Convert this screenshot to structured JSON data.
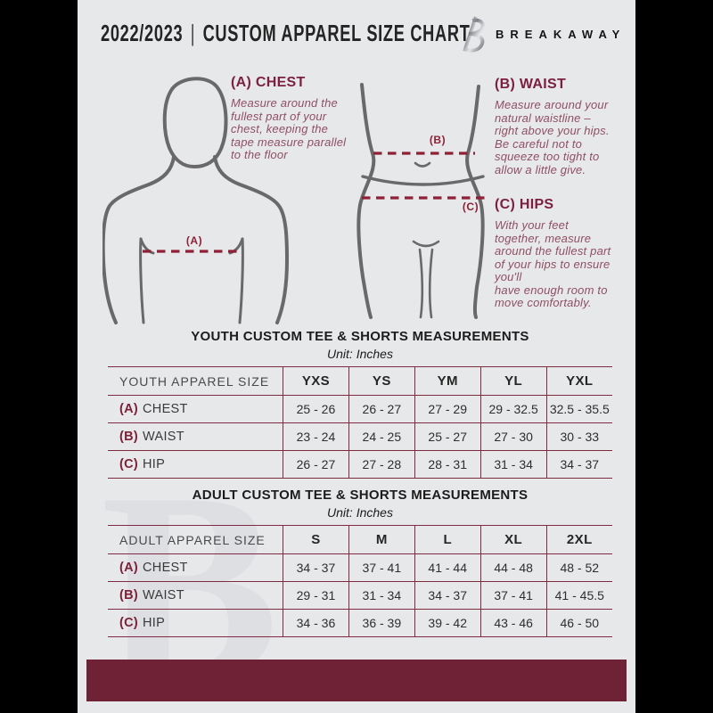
{
  "header": {
    "year": "2022/2023",
    "separator": "|",
    "title": "CUSTOM APPAREL SIZE CHART",
    "brand": "BREAKAWAY"
  },
  "diagram": {
    "chest_label": "(A)",
    "waist_label": "(B)",
    "hips_label": "(C)"
  },
  "sections": [
    {
      "heading": "(A) CHEST",
      "body": "Measure around the\nfullest part of your\nchest, keeping the\ntape measure parallel\nto the floor"
    },
    {
      "heading": "(B) WAIST",
      "body": "Measure around your\nnatural waistline –\nright above your hips.\nBe careful not to\nsqueeze too tight to\nallow a little give."
    },
    {
      "heading": "(C) HIPS",
      "body": "With your feet\ntogether, measure\naround the fullest part\nof your hips to ensure\nyou'll\nhave enough room to\nmove comfortably."
    }
  ],
  "watermark": {
    "letter": "B"
  },
  "tables": [
    {
      "title": "YOUTH CUSTOM TEE & SHORTS MEASUREMENTS",
      "unit": "Unit: Inches",
      "size_col_header": "YOUTH APPAREL SIZE",
      "sizes": [
        "YXS",
        "YS",
        "YM",
        "YL",
        "YXL"
      ],
      "rows": [
        {
          "prefix": "(A)",
          "label": "CHEST",
          "values": [
            "25 - 26",
            "26 - 27",
            "27 - 29",
            "29 - 32.5",
            "32.5 - 35.5"
          ]
        },
        {
          "prefix": "(B)",
          "label": "WAIST",
          "values": [
            "23 - 24",
            "24 - 25",
            "25 - 27",
            "27 - 30",
            "30 - 33"
          ]
        },
        {
          "prefix": "(C)",
          "label": "HIP",
          "values": [
            "26 - 27",
            "27 - 28",
            "28 - 31",
            "31 - 34",
            "34 - 37"
          ]
        }
      ]
    },
    {
      "title": "ADULT CUSTOM TEE & SHORTS MEASUREMENTS",
      "unit": "Unit: Inches",
      "size_col_header": "ADULT APPAREL SIZE",
      "sizes": [
        "S",
        "M",
        "L",
        "XL",
        "2XL"
      ],
      "rows": [
        {
          "prefix": "(A)",
          "label": "CHEST",
          "values": [
            "34 - 37",
            "37 - 41",
            "41 - 44",
            "44 - 48",
            "48 - 52"
          ]
        },
        {
          "prefix": "(B)",
          "label": "WAIST",
          "values": [
            "29 - 31",
            "31 - 34",
            "34 - 37",
            "37 - 41",
            "41 - 45.5"
          ]
        },
        {
          "prefix": "(C)",
          "label": "HIP",
          "values": [
            "34 - 36",
            "36 - 39",
            "39 - 42",
            "43 - 46",
            "46 - 50"
          ]
        }
      ]
    }
  ],
  "colors": {
    "page_bg": "#e7e8ea",
    "frame": "#000000",
    "accent_bar": "#6f2136",
    "heading_maroon": "#7c2040",
    "body_maroon": "#8f4f63",
    "dash_line": "#8e2137",
    "table_line": "#7e2b42",
    "figure_stroke": "#696969"
  }
}
